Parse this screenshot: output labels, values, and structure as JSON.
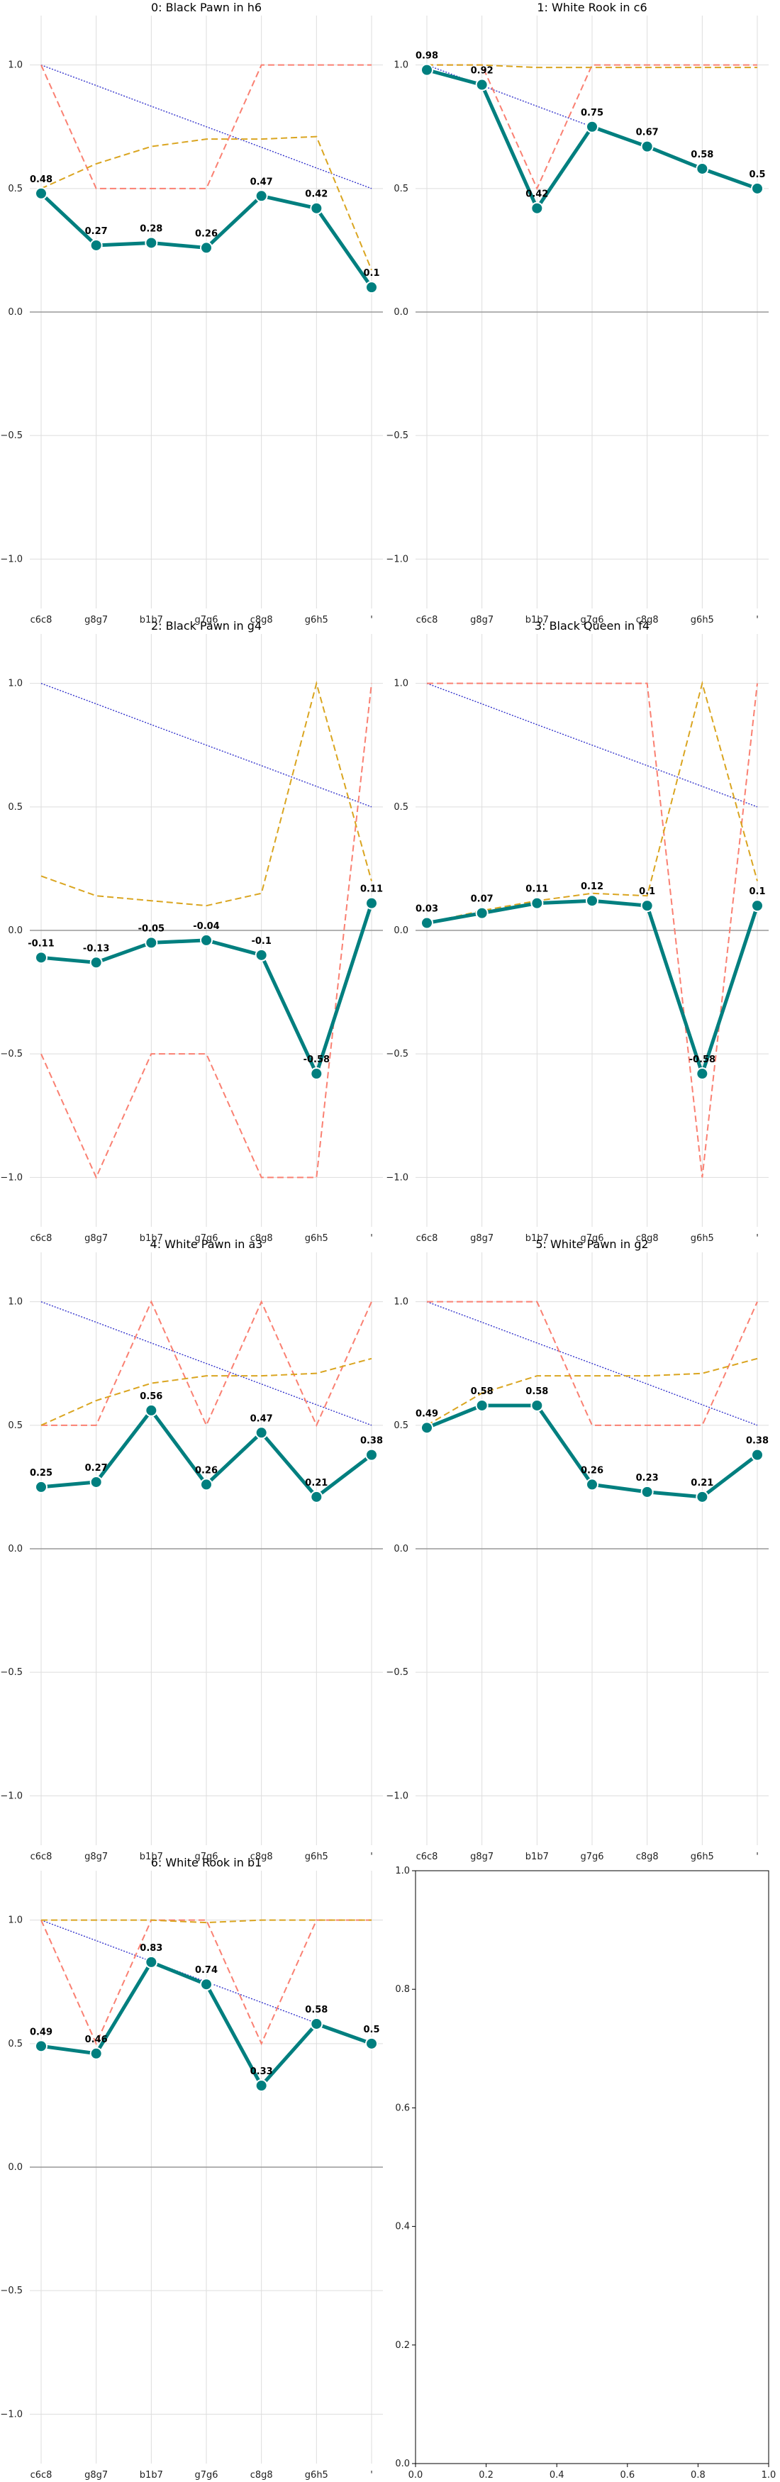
{
  "chart_data": [
    {
      "type": "line",
      "title": "0: Black Pawn in h6",
      "categories": [
        "c6c8",
        "g8g7",
        "b1b7",
        "g7g6",
        "c8g8",
        "g6h5",
        "'"
      ],
      "ylim": [
        -1.2,
        1.2
      ],
      "yticks": [
        "1.0",
        "0.5",
        "0.0",
        "−0.5",
        "−1.0"
      ],
      "grid": true,
      "series": [
        {
          "style": "teal-thick",
          "values": [
            0.48,
            0.27,
            0.28,
            0.26,
            0.47,
            0.42,
            0.1
          ],
          "labels": [
            "0.48",
            "0.27",
            "0.28",
            "0.26",
            "0.47",
            "0.42",
            "0.1"
          ]
        },
        {
          "style": "salmon-dashed",
          "values": [
            1.0,
            0.5,
            0.5,
            0.5,
            1.0,
            1.0,
            1.0
          ]
        },
        {
          "style": "orange-dashed",
          "values": [
            0.5,
            0.6,
            0.67,
            0.7,
            0.7,
            0.71,
            0.17
          ]
        },
        {
          "style": "blue-dotted",
          "values": [
            1.0,
            0.917,
            0.833,
            0.75,
            0.667,
            0.583,
            0.5
          ]
        }
      ]
    },
    {
      "type": "line",
      "title": "1: White Rook in c6",
      "categories": [
        "c6c8",
        "g8g7",
        "b1b7",
        "g7g6",
        "c8g8",
        "g6h5",
        "'"
      ],
      "ylim": [
        -1.2,
        1.2
      ],
      "yticks": [
        "1.0",
        "0.5",
        "0.0",
        "−0.5",
        "−1.0"
      ],
      "grid": true,
      "series": [
        {
          "style": "teal-thick",
          "values": [
            0.98,
            0.92,
            0.42,
            0.75,
            0.67,
            0.58,
            0.5
          ],
          "labels": [
            "0.98",
            "0.92",
            "0.42",
            "0.75",
            "0.67",
            "0.58",
            "0.5"
          ]
        },
        {
          "style": "salmon-dashed",
          "values": [
            1.0,
            1.0,
            0.5,
            1.0,
            1.0,
            1.0,
            1.0
          ]
        },
        {
          "style": "orange-dashed",
          "values": [
            1.0,
            1.0,
            0.99,
            0.99,
            0.99,
            0.99,
            0.99
          ]
        },
        {
          "style": "blue-dotted",
          "values": [
            1.0,
            0.917,
            0.833,
            0.75,
            0.667,
            0.583,
            0.5
          ]
        }
      ]
    },
    {
      "type": "line",
      "title": "2: Black Pawn in g4",
      "categories": [
        "c6c8",
        "g8g7",
        "b1b7",
        "g7g6",
        "c8g8",
        "g6h5",
        "'"
      ],
      "ylim": [
        -1.2,
        1.2
      ],
      "yticks": [
        "1.0",
        "0.5",
        "0.0",
        "−0.5",
        "−1.0"
      ],
      "grid": true,
      "series": [
        {
          "style": "teal-thick",
          "values": [
            -0.11,
            -0.13,
            -0.05,
            -0.04,
            -0.1,
            -0.58,
            0.11
          ],
          "labels": [
            "-0.11",
            "-0.13",
            "-0.05",
            "-0.04",
            "-0.1",
            "-0.58",
            "0.11"
          ]
        },
        {
          "style": "salmon-dashed",
          "values": [
            -0.5,
            -1.0,
            -0.5,
            -0.5,
            -1.0,
            -1.0,
            1.0
          ]
        },
        {
          "style": "orange-dashed",
          "values": [
            0.22,
            0.14,
            0.12,
            0.1,
            0.15,
            1.0,
            0.2
          ]
        },
        {
          "style": "blue-dotted",
          "values": [
            1.0,
            0.917,
            0.833,
            0.75,
            0.667,
            0.583,
            0.5
          ]
        }
      ]
    },
    {
      "type": "line",
      "title": "3: Black Queen in f4",
      "categories": [
        "c6c8",
        "g8g7",
        "b1b7",
        "g7g6",
        "c8g8",
        "g6h5",
        "'"
      ],
      "ylim": [
        -1.2,
        1.2
      ],
      "yticks": [
        "1.0",
        "0.5",
        "0.0",
        "−0.5",
        "−1.0"
      ],
      "grid": true,
      "series": [
        {
          "style": "teal-thick",
          "values": [
            0.03,
            0.07,
            0.11,
            0.12,
            0.1,
            -0.58,
            0.1
          ],
          "labels": [
            "0.03",
            "0.07",
            "0.11",
            "0.12",
            "0.1",
            "-0.58",
            "0.1"
          ]
        },
        {
          "style": "salmon-dashed",
          "values": [
            1.0,
            1.0,
            1.0,
            1.0,
            1.0,
            -1.0,
            1.0
          ]
        },
        {
          "style": "orange-dashed",
          "values": [
            0.03,
            0.08,
            0.12,
            0.15,
            0.14,
            1.0,
            0.2
          ]
        },
        {
          "style": "blue-dotted",
          "values": [
            1.0,
            0.917,
            0.833,
            0.75,
            0.667,
            0.583,
            0.5
          ]
        }
      ]
    },
    {
      "type": "line",
      "title": "4: White Pawn in a3",
      "categories": [
        "c6c8",
        "g8g7",
        "b1b7",
        "g7g6",
        "c8g8",
        "g6h5",
        "'"
      ],
      "ylim": [
        -1.2,
        1.2
      ],
      "yticks": [
        "1.0",
        "0.5",
        "0.0",
        "−0.5",
        "−1.0"
      ],
      "grid": true,
      "series": [
        {
          "style": "teal-thick",
          "values": [
            0.25,
            0.27,
            0.56,
            0.26,
            0.47,
            0.21,
            0.38
          ],
          "labels": [
            "0.25",
            "0.27",
            "0.56",
            "0.26",
            "0.47",
            "0.21",
            "0.38"
          ]
        },
        {
          "style": "salmon-dashed",
          "values": [
            0.5,
            0.5,
            1.0,
            0.5,
            1.0,
            0.5,
            1.0
          ]
        },
        {
          "style": "orange-dashed",
          "values": [
            0.5,
            0.6,
            0.67,
            0.7,
            0.7,
            0.71,
            0.77
          ]
        },
        {
          "style": "blue-dotted",
          "values": [
            1.0,
            0.917,
            0.833,
            0.75,
            0.667,
            0.583,
            0.5
          ]
        }
      ]
    },
    {
      "type": "line",
      "title": "5: White Pawn in g2",
      "categories": [
        "c6c8",
        "g8g7",
        "b1b7",
        "g7g6",
        "c8g8",
        "g6h5",
        "'"
      ],
      "ylim": [
        -1.2,
        1.2
      ],
      "yticks": [
        "1.0",
        "0.5",
        "0.0",
        "−0.5",
        "−1.0"
      ],
      "grid": true,
      "series": [
        {
          "style": "teal-thick",
          "values": [
            0.49,
            0.58,
            0.58,
            0.26,
            0.23,
            0.21,
            0.38
          ],
          "labels": [
            "0.49",
            "0.58",
            "0.58",
            "0.26",
            "0.23",
            "0.21",
            "0.38"
          ]
        },
        {
          "style": "salmon-dashed",
          "values": [
            1.0,
            1.0,
            1.0,
            0.5,
            0.5,
            0.5,
            1.0
          ]
        },
        {
          "style": "orange-dashed",
          "values": [
            0.5,
            0.63,
            0.7,
            0.7,
            0.7,
            0.71,
            0.77
          ]
        },
        {
          "style": "blue-dotted",
          "values": [
            1.0,
            0.917,
            0.833,
            0.75,
            0.667,
            0.583,
            0.5
          ]
        }
      ]
    },
    {
      "type": "line",
      "title": "6: White Rook in b1",
      "categories": [
        "c6c8",
        "g8g7",
        "b1b7",
        "g7g6",
        "c8g8",
        "g6h5",
        "'"
      ],
      "ylim": [
        -1.2,
        1.2
      ],
      "yticks": [
        "1.0",
        "0.5",
        "0.0",
        "−0.5",
        "−1.0"
      ],
      "grid": true,
      "series": [
        {
          "style": "teal-thick",
          "values": [
            0.49,
            0.46,
            0.83,
            0.74,
            0.33,
            0.58,
            0.5
          ],
          "labels": [
            "0.49",
            "0.46",
            "0.83",
            "0.74",
            "0.33",
            "0.58",
            "0.5"
          ]
        },
        {
          "style": "salmon-dashed",
          "values": [
            1.0,
            0.5,
            1.0,
            1.0,
            0.5,
            1.0,
            1.0
          ]
        },
        {
          "style": "orange-dashed",
          "values": [
            1.0,
            1.0,
            1.0,
            0.99,
            1.0,
            1.0,
            1.0
          ]
        },
        {
          "style": "blue-dotted",
          "values": [
            1.0,
            0.917,
            0.833,
            0.75,
            0.667,
            0.583,
            0.5
          ]
        }
      ]
    },
    {
      "type": "empty",
      "xlim": [
        0.0,
        1.0
      ],
      "ylim": [
        0.0,
        1.0
      ],
      "xticks": [
        "0.0",
        "0.2",
        "0.4",
        "0.6",
        "0.8",
        "1.0"
      ],
      "yticks": [
        "0.0",
        "0.2",
        "0.4",
        "0.6",
        "0.8",
        "1.0"
      ]
    }
  ],
  "styles": {
    "teal-thick": {
      "color": "#007f7f"
    },
    "salmon-dashed": {
      "color": "#fa8072"
    },
    "orange-dashed": {
      "color": "#daa520"
    },
    "blue-dotted": {
      "color": "#3333cc"
    },
    "zero_line": "#999999",
    "grid": "#dddddd"
  }
}
